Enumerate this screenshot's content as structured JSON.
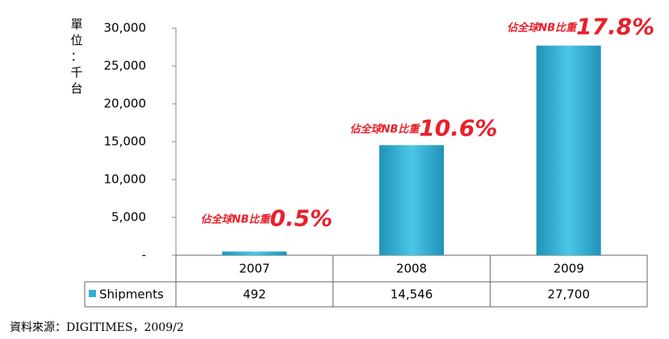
{
  "chart_data": {
    "type": "bar",
    "y_axis_label": "單位：千台",
    "categories": [
      "2007",
      "2008",
      "2009"
    ],
    "series": [
      {
        "name": "Shipments",
        "color": "#2fb0d4",
        "values": [
          492,
          14546,
          27700
        ],
        "value_labels": [
          "492",
          "14,546",
          "27,700"
        ]
      }
    ],
    "ylim": [
      0,
      30000
    ],
    "yticks": [
      {
        "value": 0,
        "label": "-"
      },
      {
        "value": 5000,
        "label": "5,000"
      },
      {
        "value": 10000,
        "label": "10,000"
      },
      {
        "value": 15000,
        "label": "15,000"
      },
      {
        "value": 20000,
        "label": "20,000"
      },
      {
        "value": 25000,
        "label": "25,000"
      },
      {
        "value": 30000,
        "label": "30,000"
      }
    ],
    "annotations": [
      {
        "prefix": "佔全球NB比重",
        "share": "0.5%"
      },
      {
        "prefix": "佔全球NB比重",
        "share": "10.6%"
      },
      {
        "prefix": "佔全球NB比重",
        "share": "17.8%"
      }
    ],
    "source": "資料來源：DIGITIMES，2009/2"
  }
}
